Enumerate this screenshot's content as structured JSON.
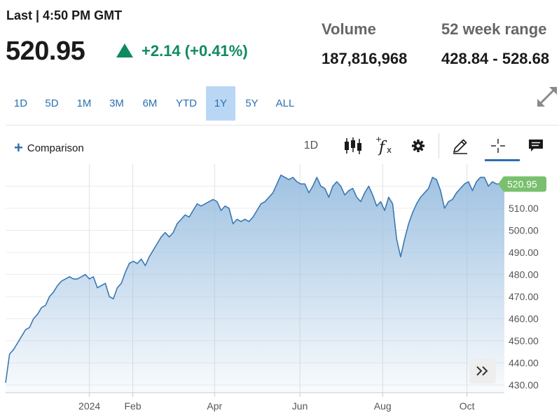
{
  "quote": {
    "last_label": "Last | 4:50 PM GMT",
    "price": "520.95",
    "direction": "up",
    "change": "+2.14 (+0.41%)",
    "up_color": "#0f8a5f"
  },
  "stats": {
    "volume_label": "Volume",
    "volume_value": "187,816,968",
    "range_label": "52 week range",
    "range_value": "428.84 - 528.68"
  },
  "range_tabs": [
    {
      "label": "1D"
    },
    {
      "label": "5D"
    },
    {
      "label": "1M"
    },
    {
      "label": "3M"
    },
    {
      "label": "6M"
    },
    {
      "label": "YTD"
    },
    {
      "label": "1Y",
      "active": true
    },
    {
      "label": "5Y"
    },
    {
      "label": "ALL"
    }
  ],
  "toolbar": {
    "comparison_label": "Comparison",
    "interval_label": "1D",
    "icons": [
      "candlestick-icon",
      "function-icon",
      "gear-icon",
      "pencil-icon",
      "crosshair-icon",
      "comment-icon"
    ]
  },
  "chart_data": {
    "type": "area",
    "title": "",
    "xlabel": "",
    "ylabel": "",
    "x_ticks": [
      "2024",
      "Feb",
      "Apr",
      "Jun",
      "Aug",
      "Oct"
    ],
    "y_ticks": [
      "430.00",
      "440.00",
      "450.00",
      "460.00",
      "470.00",
      "480.00",
      "490.00",
      "500.00",
      "510.00",
      "520.00"
    ],
    "ylim": [
      426.5,
      530
    ],
    "last_value_label": "520.95",
    "series": [
      {
        "values": [
          431,
          444,
          446,
          449,
          452,
          455,
          456,
          460,
          462,
          465,
          466,
          470,
          472,
          475,
          477,
          478,
          479,
          478,
          478,
          479,
          480,
          478,
          479,
          474,
          475,
          476,
          470,
          469,
          474,
          476,
          481,
          485,
          486,
          485,
          487,
          484,
          488,
          491,
          494,
          497,
          499,
          497,
          499,
          503,
          505,
          507,
          506,
          509,
          512,
          511,
          512,
          513,
          514,
          513,
          509,
          511,
          510,
          503,
          505,
          504,
          505,
          504,
          506,
          509,
          512,
          513,
          515,
          517,
          521,
          525,
          524,
          523,
          524,
          522,
          521,
          521,
          517,
          520,
          524,
          520,
          519,
          515,
          520,
          522,
          520,
          516,
          518,
          519,
          515,
          513,
          517,
          520,
          516,
          511,
          513,
          509,
          515,
          512,
          496,
          488,
          496,
          503,
          508,
          512,
          515,
          517,
          519,
          524,
          523,
          518,
          510,
          513,
          514,
          517,
          519,
          521,
          522,
          518,
          522,
          524,
          524,
          520,
          522,
          521,
          521,
          520
        ]
      }
    ],
    "line_color": "#3a78b5",
    "fill_color": "#9bbfe0",
    "last_label_color": "#78c06e",
    "grid": true
  }
}
